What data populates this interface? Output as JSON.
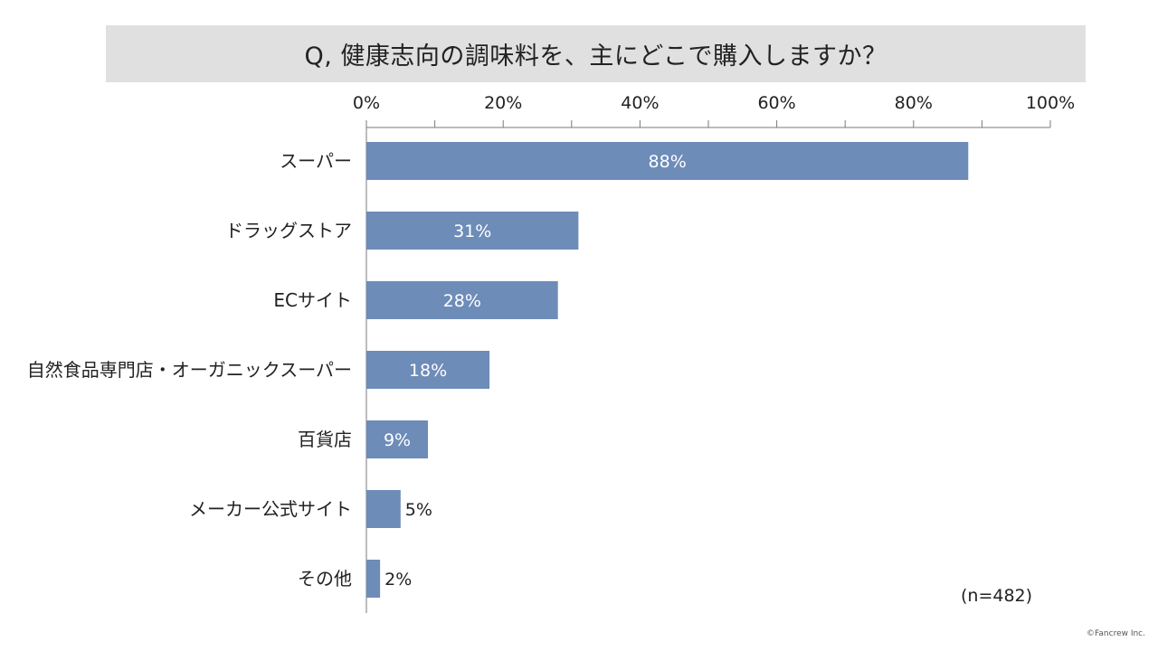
{
  "chart_data": {
    "type": "bar",
    "orientation": "horizontal",
    "title": "Q, 健康志向の調味料を、主にどこで購入しますか？",
    "categories": [
      "スーパー",
      "ドラッグストア",
      "ECサイト",
      "自然食品専門店・オーガニックスーパー",
      "百貨店",
      "メーカー公式サイト",
      "その他"
    ],
    "values": [
      88,
      31,
      28,
      18,
      9,
      5,
      2
    ],
    "data_labels": [
      "88%",
      "31%",
      "28%",
      "18%",
      "9%",
      "5%",
      "2%"
    ],
    "xlim": [
      0,
      100
    ],
    "x_ticks": [
      "0%",
      "20%",
      "40%",
      "60%",
      "80%",
      "100%"
    ],
    "axis_position": "top",
    "grid": false,
    "bar_color": "#6d8cb8",
    "sample_note": "(n=482)"
  },
  "footer": {
    "copyright": "©Fancrew Inc."
  }
}
